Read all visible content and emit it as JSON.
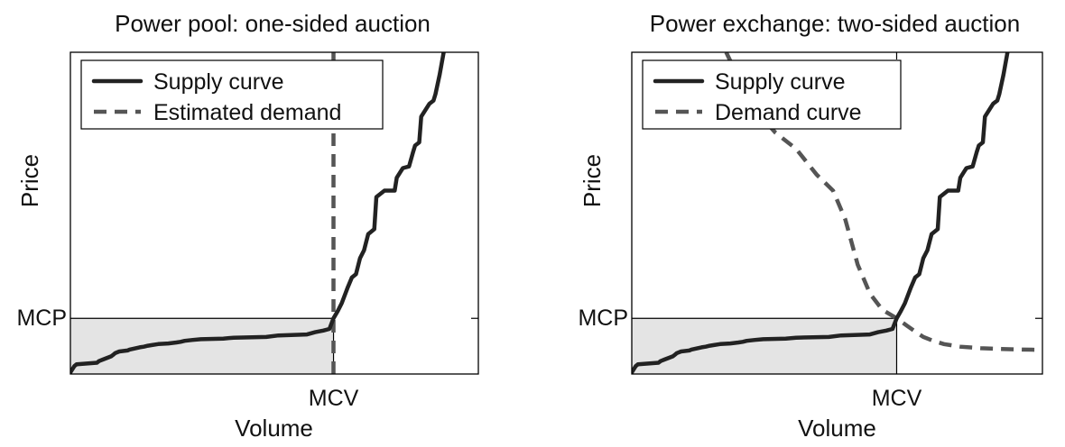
{
  "colors": {
    "supply": "#222222",
    "demand": "#555555",
    "shade": "#e4e4e4"
  },
  "chart_data": [
    {
      "type": "line",
      "title": "Power pool: one-sided auction",
      "xlabel": "Volume",
      "ylabel": "Price",
      "xlim": [
        0,
        100
      ],
      "ylim": [
        0,
        100
      ],
      "grid": false,
      "legend_position": "top-left",
      "x_tick_label": "MCV",
      "y_tick_label": "MCP",
      "mcv": 64.5,
      "mcp": 17.3,
      "series": [
        {
          "name": "Supply curve",
          "style": "solid",
          "x": [
            0,
            1,
            1.5,
            6.5,
            7,
            8,
            9,
            10,
            10.5,
            11,
            12,
            14,
            14.5,
            16,
            17,
            18,
            19,
            20,
            21.5,
            24,
            26,
            27,
            28,
            30,
            32,
            37.5,
            40,
            48,
            51,
            58,
            60,
            62,
            63.5,
            64.5,
            65.5,
            66.5,
            68,
            69,
            70,
            71,
            72,
            72.5,
            73,
            74.5,
            75,
            77,
            79.5,
            80,
            81,
            81.5,
            83,
            84,
            84.5,
            85.5,
            86,
            87,
            88,
            89,
            89.5,
            90,
            90.5,
            91.5
          ],
          "y": [
            0.5,
            2.5,
            3,
            3.5,
            4,
            4.5,
            5,
            5.5,
            6,
            6.5,
            7,
            7.3,
            7.6,
            8,
            8.3,
            8.5,
            8.8,
            9,
            9.3,
            9.5,
            9.8,
            10,
            10.3,
            10.6,
            10.8,
            11,
            11.3,
            11.5,
            12,
            12.3,
            13,
            13.5,
            14,
            17.3,
            19.5,
            22,
            27,
            30,
            31,
            36,
            38.5,
            41,
            43.5,
            45,
            55,
            57,
            57,
            61,
            63,
            64,
            64.5,
            69,
            71,
            72,
            80,
            82,
            84,
            85,
            87,
            90,
            93,
            100
          ]
        },
        {
          "name": "Estimated demand",
          "style": "dashed",
          "x": [
            64.5,
            64.5
          ],
          "y": [
            0,
            100
          ]
        }
      ]
    },
    {
      "type": "line",
      "title": "Power exchange: two-sided auction",
      "xlabel": "Volume",
      "ylabel": "Price",
      "xlim": [
        0,
        100
      ],
      "ylim": [
        0,
        100
      ],
      "grid": false,
      "legend_position": "top-left",
      "x_tick_label": "MCV",
      "y_tick_label": "MCP",
      "mcv": 64.5,
      "mcp": 17.3,
      "series": [
        {
          "name": "Supply curve",
          "style": "solid",
          "x": [
            0,
            1,
            1.5,
            6.5,
            7,
            8,
            9,
            10,
            10.5,
            11,
            12,
            14,
            14.5,
            16,
            17,
            18,
            19,
            20,
            21.5,
            24,
            26,
            27,
            28,
            30,
            32,
            37.5,
            40,
            48,
            51,
            58,
            60,
            62,
            63.5,
            64.5,
            65.5,
            66.5,
            68,
            69,
            70,
            71,
            72,
            72.5,
            73,
            74.5,
            75,
            77,
            79.5,
            80,
            81,
            81.5,
            83,
            84,
            84.5,
            85.5,
            86,
            87,
            88,
            89,
            89.5,
            90,
            90.5,
            91.5
          ],
          "y": [
            0.5,
            2.5,
            3,
            3.5,
            4,
            4.5,
            5,
            5.5,
            6,
            6.5,
            7,
            7.3,
            7.6,
            8,
            8.3,
            8.5,
            8.8,
            9,
            9.3,
            9.5,
            9.8,
            10,
            10.3,
            10.6,
            10.8,
            11,
            11.3,
            11.5,
            12,
            12.3,
            13,
            13.5,
            14,
            17.3,
            19.5,
            22,
            27,
            30,
            31,
            36,
            38.5,
            41,
            43.5,
            45,
            55,
            57,
            57,
            61,
            63,
            64,
            64.5,
            69,
            71,
            72,
            80,
            82,
            84,
            85,
            87,
            90,
            93,
            100
          ]
        },
        {
          "name": "Demand curve",
          "style": "dashed",
          "x": [
            23,
            26,
            30,
            35,
            40,
            45,
            49,
            52,
            55,
            58,
            61,
            64.5,
            67,
            69,
            71,
            73,
            76,
            80,
            85,
            90,
            95,
            100
          ],
          "y": [
            100,
            92,
            82,
            75,
            70,
            62,
            57,
            48,
            34,
            25,
            20,
            17.3,
            15,
            13.2,
            11.5,
            10.5,
            9.3,
            8.5,
            8,
            7.8,
            7.6,
            7.5
          ]
        }
      ]
    }
  ]
}
